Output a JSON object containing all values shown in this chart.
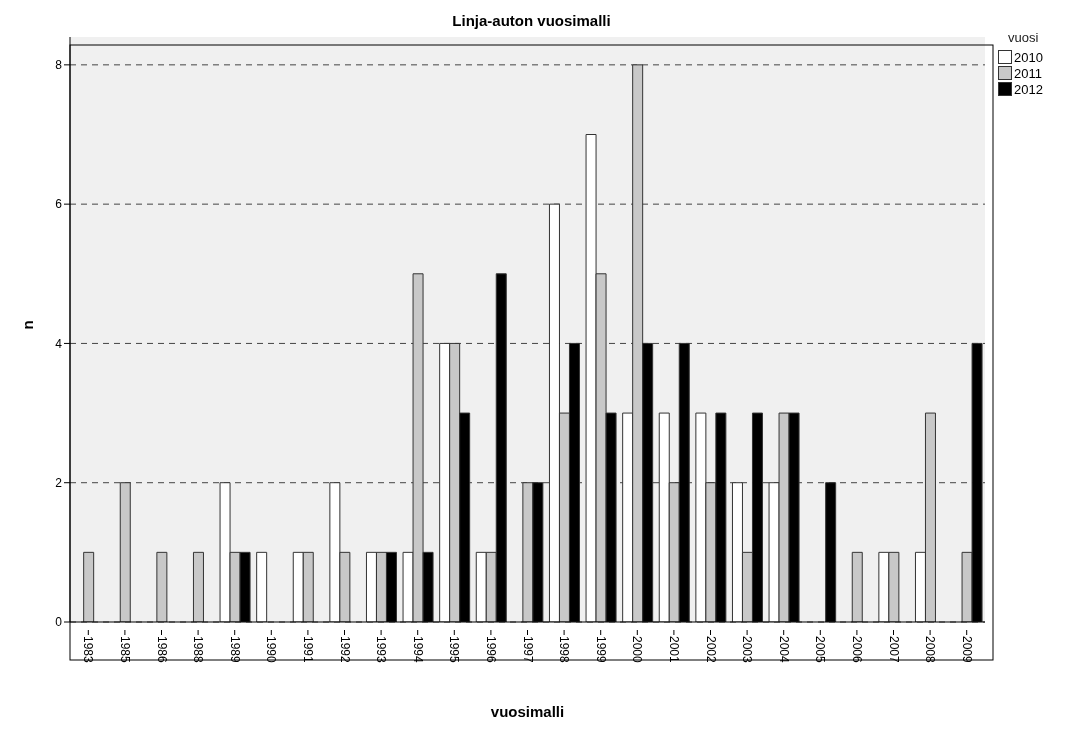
{
  "chart_data": {
    "type": "bar",
    "title": "Linja-auton vuosimalli",
    "xlabel": "vuosimalli",
    "ylabel": "n",
    "legend_title": "vuosi",
    "categories": [
      "1983",
      "1985",
      "1986",
      "1988",
      "1989",
      "1990",
      "1991",
      "1992",
      "1993",
      "1994",
      "1995",
      "1996",
      "1997",
      "1998",
      "1999",
      "2000",
      "2001",
      "2002",
      "2003",
      "2004",
      "2005",
      "2006",
      "2007",
      "2008",
      "2009"
    ],
    "series": [
      {
        "name": "2010",
        "color": "#ffffff",
        "values": [
          null,
          null,
          null,
          null,
          2,
          1,
          1,
          2,
          1,
          1,
          4,
          1,
          null,
          6,
          7,
          3,
          3,
          3,
          2,
          2,
          null,
          null,
          1,
          1,
          null
        ]
      },
      {
        "name": "2011",
        "color": "#c8c8c8",
        "values": [
          1,
          2,
          1,
          1,
          1,
          null,
          1,
          1,
          1,
          5,
          4,
          1,
          2,
          3,
          5,
          8,
          2,
          2,
          1,
          3,
          null,
          1,
          1,
          3,
          1
        ]
      },
      {
        "name": "2012",
        "color": "#000000",
        "values": [
          null,
          null,
          null,
          null,
          1,
          null,
          null,
          null,
          1,
          1,
          3,
          5,
          2,
          4,
          3,
          4,
          4,
          3,
          3,
          3,
          2,
          null,
          null,
          null,
          4
        ]
      }
    ],
    "ylim": [
      0,
      8.4
    ],
    "yticks": [
      0,
      2,
      4,
      6,
      8
    ],
    "grid": "y",
    "line_style": "dashed",
    "legend": "top right"
  }
}
